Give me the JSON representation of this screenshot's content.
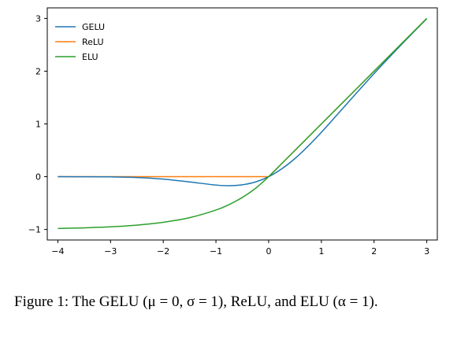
{
  "chart_data": {
    "type": "line",
    "title": "",
    "xlabel": "",
    "ylabel": "",
    "xlim": [
      -4.2,
      3.2
    ],
    "ylim": [
      -1.2,
      3.2
    ],
    "x_ticks": [
      -4,
      -3,
      -2,
      -1,
      0,
      1,
      2,
      3
    ],
    "x_tick_labels": [
      "−4",
      "−3",
      "−2",
      "−1",
      "0",
      "1",
      "2",
      "3"
    ],
    "y_ticks": [
      -1,
      0,
      1,
      2,
      3
    ],
    "y_tick_labels": [
      "−1",
      "0",
      "1",
      "2",
      "3"
    ],
    "grid": false,
    "legend_position": "top-left",
    "x": [
      -4.0,
      -3.5,
      -3.0,
      -2.5,
      -2.0,
      -1.5,
      -1.0,
      -0.75,
      -0.5,
      -0.25,
      0.0,
      0.25,
      0.5,
      0.75,
      1.0,
      1.5,
      2.0,
      2.5,
      3.0
    ],
    "series": [
      {
        "name": "GELU",
        "color": "#1f77b4",
        "values": [
          -0.0001,
          -0.0008,
          -0.004,
          -0.0155,
          -0.0455,
          -0.1002,
          -0.1587,
          -0.17,
          -0.1543,
          -0.1003,
          0.0,
          0.1497,
          0.3457,
          0.58,
          0.8413,
          1.3998,
          1.9545,
          2.4845,
          2.996
        ]
      },
      {
        "name": "ReLU",
        "color": "#ff7f0e",
        "values": [
          0,
          0,
          0,
          0,
          0,
          0,
          0,
          0,
          0,
          0,
          0,
          0.25,
          0.5,
          0.75,
          1.0,
          1.5,
          2.0,
          2.5,
          3.0
        ]
      },
      {
        "name": "ELU",
        "color": "#2ca02c",
        "values": [
          -0.9817,
          -0.9698,
          -0.9502,
          -0.9179,
          -0.8647,
          -0.7769,
          -0.6321,
          -0.5276,
          -0.3935,
          -0.2212,
          0.0,
          0.25,
          0.5,
          0.75,
          1.0,
          1.5,
          2.0,
          2.5,
          3.0
        ]
      }
    ]
  },
  "caption": {
    "text": "Figure 1: The GELU (μ = 0, σ = 1), ReLU, and ELU (α = 1)."
  }
}
